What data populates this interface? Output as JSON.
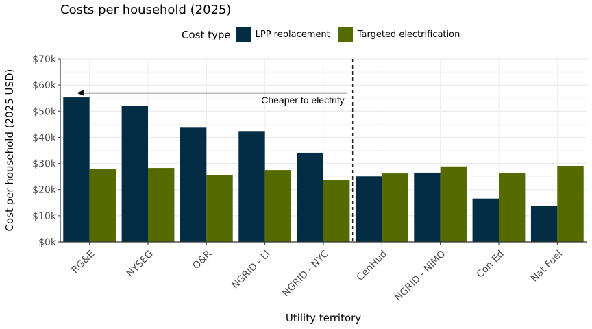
{
  "chart_data": {
    "type": "bar",
    "title": "Costs per household (2025)",
    "xlabel": "Utility territory",
    "ylabel": "Cost per household (2025 USD)",
    "legend_title": "Cost type",
    "legend_position": "top",
    "ylim": [
      0,
      70000
    ],
    "yticks": [
      0,
      10000,
      20000,
      30000,
      40000,
      50000,
      60000,
      70000
    ],
    "ytick_labels": [
      "$0k",
      "$10k",
      "$20k",
      "$30k",
      "$40k",
      "$50k",
      "$60k",
      "$70k"
    ],
    "grid": true,
    "categories": [
      "RG&E",
      "NYSEG",
      "O&R",
      "NGRID - LI",
      "NGRID - NYC",
      "CenHud",
      "NGRID - NiMO",
      "Con Ed",
      "Nat Fuel"
    ],
    "series": [
      {
        "name": "LPP replacement",
        "color": "#032d45",
        "values": [
          55300,
          52100,
          43700,
          42400,
          34100,
          25100,
          26500,
          16600,
          13900
        ]
      },
      {
        "name": "Targeted electrification",
        "color": "#556b00",
        "values": [
          27800,
          28300,
          25500,
          27500,
          23600,
          26200,
          28900,
          26300,
          29100
        ]
      }
    ],
    "annotations": [
      {
        "text": "Cheaper to electrify",
        "type": "arrow-left",
        "from_category_index": 4.5,
        "to_category_index": -0.22,
        "y": 57000,
        "label_y": 54000
      },
      {
        "type": "vline-dashed",
        "category_index": 4.5
      }
    ]
  }
}
